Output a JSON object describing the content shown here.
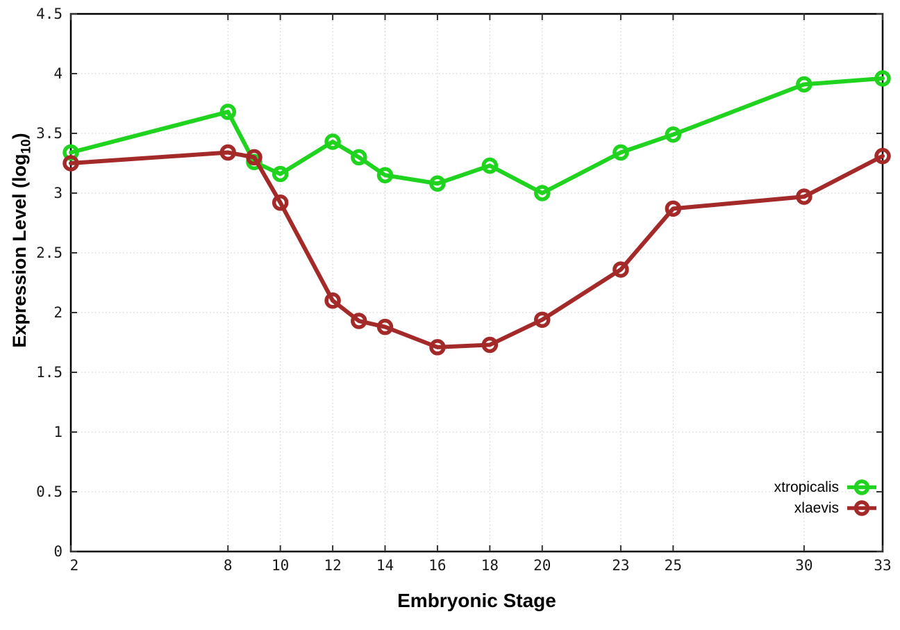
{
  "chart_data": {
    "type": "line",
    "xlabel": "Embryonic Stage",
    "ylabel": "Expression Level (log10)",
    "ylabel_parts": {
      "prefix": "Expression Level (log",
      "sub": "10",
      "suffix": ")"
    },
    "x": [
      2,
      8,
      9,
      10,
      12,
      13,
      14,
      16,
      18,
      20,
      23,
      25,
      30,
      33
    ],
    "series": [
      {
        "name": "xtropicalis",
        "color": "#1fd31f",
        "values": [
          3.34,
          3.68,
          3.26,
          3.16,
          3.43,
          3.3,
          3.15,
          3.08,
          3.23,
          3.0,
          3.34,
          3.49,
          3.91,
          3.96
        ]
      },
      {
        "name": "xlaevis",
        "color": "#a42a2a",
        "values": [
          3.25,
          3.34,
          3.3,
          2.92,
          2.1,
          1.93,
          1.88,
          1.71,
          1.73,
          1.94,
          2.36,
          2.87,
          2.97,
          3.31
        ]
      }
    ],
    "xlim": [
      2,
      33
    ],
    "ylim": [
      0,
      4.5
    ],
    "x_ticks": [
      2,
      8,
      10,
      12,
      14,
      16,
      18,
      20,
      23,
      25,
      30,
      33
    ],
    "x_tick_labels": [
      "2",
      "8",
      "10",
      "12",
      "14",
      "16",
      "18",
      "20",
      "23",
      "25",
      "30",
      "33"
    ],
    "y_ticks": [
      0,
      0.5,
      1,
      1.5,
      2,
      2.5,
      3,
      3.5,
      4,
      4.5
    ],
    "y_tick_labels": [
      "0",
      "0.5",
      "1",
      "1.5",
      "2",
      "2.5",
      "3",
      "3.5",
      "4",
      "4.5"
    ],
    "grid": true,
    "legend_position": "inside-bottom-right",
    "frame_color": "#000000",
    "grid_color": "#c9c9c9",
    "tick_color": "#333333"
  }
}
